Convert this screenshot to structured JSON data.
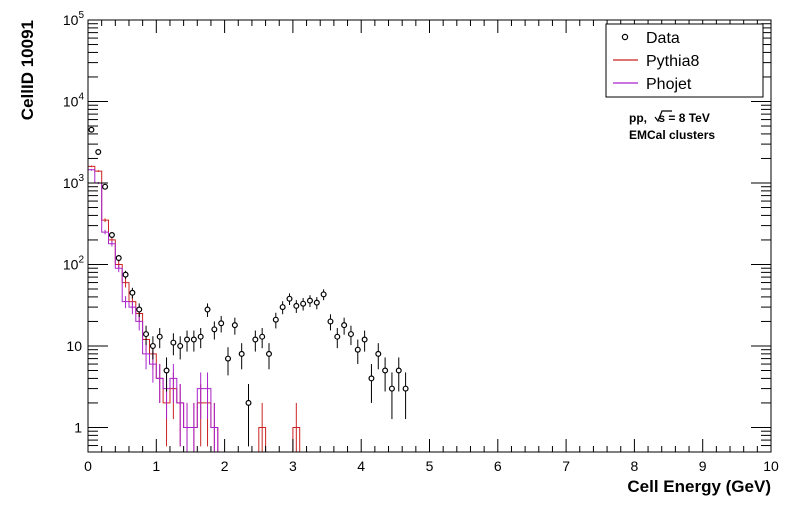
{
  "chart_data": {
    "type": "scatter",
    "xlabel": "Cell Energy (GeV)",
    "ylabel": "CellID 10091",
    "xlim": [
      0,
      10
    ],
    "ylim": [
      0.5,
      100000
    ],
    "yscale": "log",
    "x_ticks": [
      "0",
      "1",
      "2",
      "3",
      "4",
      "5",
      "6",
      "7",
      "8",
      "9",
      "10"
    ],
    "y_ticks": [
      {
        "value": 1,
        "label": "1"
      },
      {
        "value": 10,
        "label": "10"
      },
      {
        "value": 100,
        "base": "10",
        "exp": "2"
      },
      {
        "value": 1000,
        "base": "10",
        "exp": "3"
      },
      {
        "value": 10000,
        "base": "10",
        "exp": "4"
      },
      {
        "value": 100000,
        "base": "10",
        "exp": "5"
      }
    ],
    "legend": {
      "position": "top-right",
      "entries": [
        "Data",
        "Pythia8",
        "Phojet"
      ]
    },
    "annotations": {
      "line1_prefix": "pp, ",
      "sqrt_s": "s",
      "line1_suffix": " = 8 TeV",
      "line2": "EMCal clusters"
    },
    "series": [
      {
        "name": "Data",
        "kind": "points",
        "color": "#000000",
        "points": [
          [
            0.05,
            4500
          ],
          [
            0.15,
            2400
          ],
          [
            0.25,
            900
          ],
          [
            0.35,
            230
          ],
          [
            0.45,
            120
          ],
          [
            0.55,
            75
          ],
          [
            0.65,
            45
          ],
          [
            0.75,
            28
          ],
          [
            0.85,
            14
          ],
          [
            0.95,
            10
          ],
          [
            1.05,
            13
          ],
          [
            1.15,
            5
          ],
          [
            1.25,
            11
          ],
          [
            1.35,
            10
          ],
          [
            1.45,
            12
          ],
          [
            1.55,
            12
          ],
          [
            1.65,
            13
          ],
          [
            1.75,
            28
          ],
          [
            1.85,
            16
          ],
          [
            1.95,
            19
          ],
          [
            2.05,
            7
          ],
          [
            2.15,
            18
          ],
          [
            2.25,
            8
          ],
          [
            2.35,
            2
          ],
          [
            2.45,
            12
          ],
          [
            2.55,
            13
          ],
          [
            2.65,
            8
          ],
          [
            2.75,
            21
          ],
          [
            2.85,
            30
          ],
          [
            2.95,
            38
          ],
          [
            3.05,
            31
          ],
          [
            3.15,
            33
          ],
          [
            3.25,
            36
          ],
          [
            3.35,
            34
          ],
          [
            3.45,
            43
          ],
          [
            3.55,
            20
          ],
          [
            3.65,
            13
          ],
          [
            3.75,
            18
          ],
          [
            3.85,
            14
          ],
          [
            3.95,
            9
          ],
          [
            4.05,
            12
          ],
          [
            4.15,
            4
          ],
          [
            4.25,
            8
          ],
          [
            4.35,
            5
          ],
          [
            4.45,
            3
          ],
          [
            4.55,
            5
          ],
          [
            4.65,
            3
          ]
        ]
      },
      {
        "name": "Pythia8",
        "kind": "histogram",
        "color": "#cc2222",
        "bin_width": 0.1,
        "bins": [
          [
            0.0,
            1600
          ],
          [
            0.1,
            1400
          ],
          [
            0.2,
            350
          ],
          [
            0.3,
            200
          ],
          [
            0.4,
            100
          ],
          [
            0.5,
            60
          ],
          [
            0.6,
            35
          ],
          [
            0.7,
            25
          ],
          [
            0.8,
            12
          ],
          [
            0.9,
            8
          ],
          [
            1.0,
            4
          ],
          [
            1.1,
            2
          ],
          [
            1.2,
            3
          ],
          [
            1.3,
            2
          ],
          [
            1.4,
            1
          ],
          [
            1.5,
            1
          ],
          [
            1.6,
            2
          ],
          [
            1.7,
            2
          ],
          [
            1.8,
            1
          ],
          [
            1.9,
            0
          ],
          [
            2.5,
            1
          ],
          [
            3.0,
            1
          ]
        ]
      },
      {
        "name": "Phojet",
        "kind": "histogram",
        "color": "#aa22cc",
        "bin_width": 0.1,
        "bins": [
          [
            0.0,
            1450
          ],
          [
            0.1,
            1000
          ],
          [
            0.2,
            250
          ],
          [
            0.3,
            180
          ],
          [
            0.4,
            90
          ],
          [
            0.5,
            35
          ],
          [
            0.6,
            30
          ],
          [
            0.7,
            20
          ],
          [
            0.8,
            8
          ],
          [
            0.9,
            6
          ],
          [
            1.0,
            4
          ],
          [
            1.1,
            3
          ],
          [
            1.2,
            4
          ],
          [
            1.3,
            2
          ],
          [
            1.4,
            1
          ],
          [
            1.5,
            1
          ],
          [
            1.6,
            3
          ],
          [
            1.7,
            3
          ],
          [
            1.8,
            1
          ],
          [
            1.9,
            0
          ]
        ]
      }
    ]
  }
}
